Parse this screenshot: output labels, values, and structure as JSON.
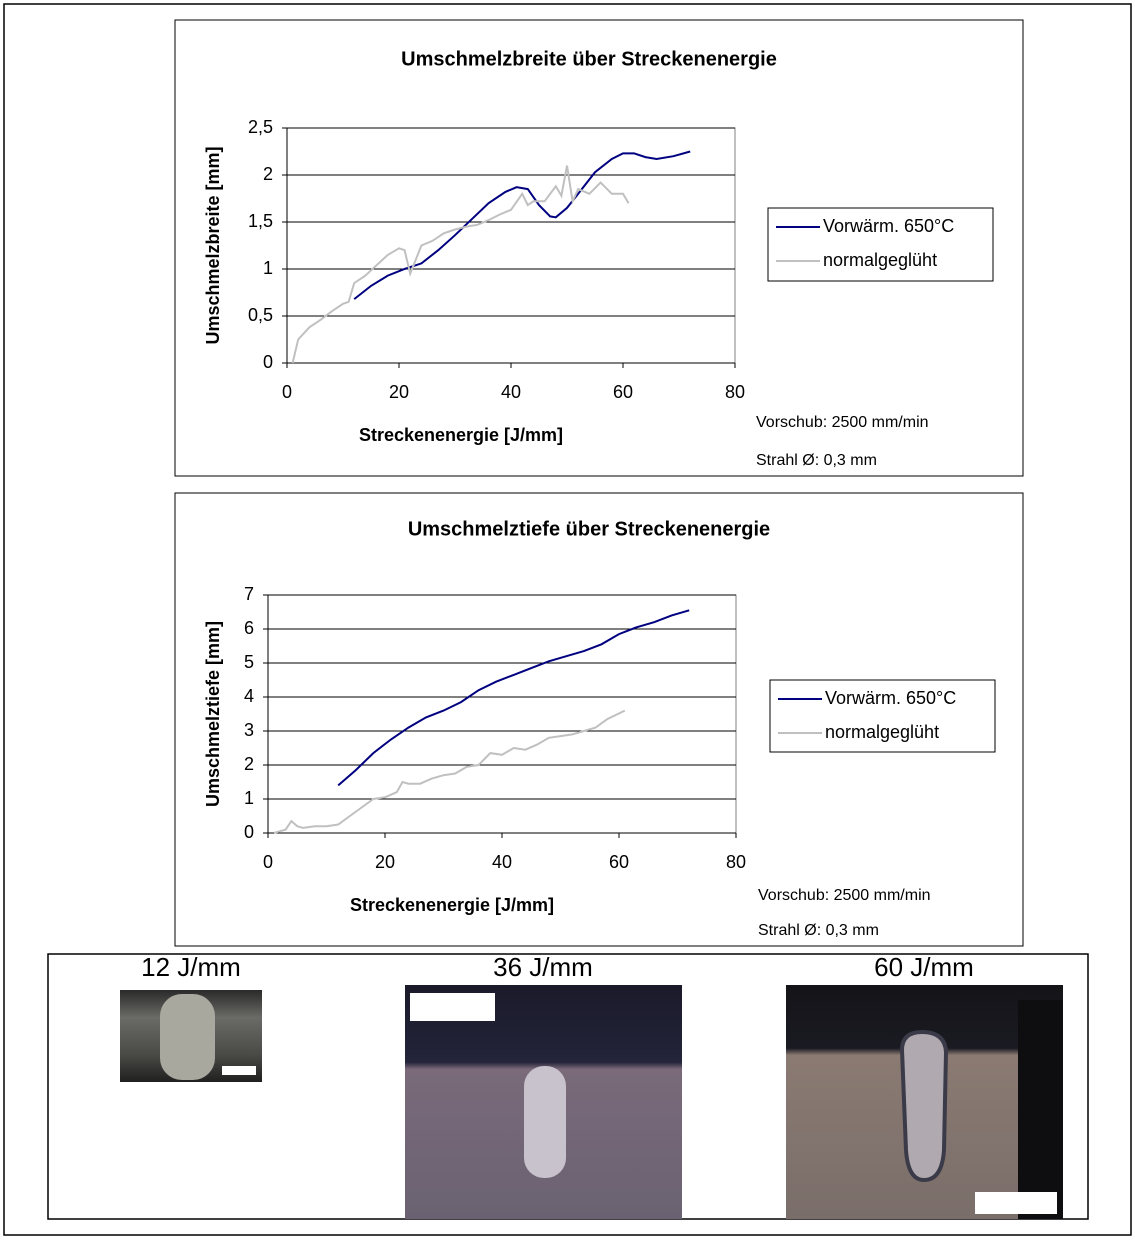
{
  "chart_data": [
    {
      "type": "line",
      "title": "Umschmelzbreite über Streckenenergie",
      "x_label": "Streckenenergie [J/mm]",
      "y_label": "Umschmelzbreite [mm]",
      "xlim": [
        0,
        80
      ],
      "xticks": [
        0,
        20,
        40,
        60,
        80
      ],
      "ylim": [
        0,
        2.5
      ],
      "yticks": [
        0,
        {
          "value": 0.5,
          "label": "0,5"
        },
        1,
        {
          "value": 1.5,
          "label": "1,5"
        },
        2,
        {
          "value": 2.5,
          "label": "2,5"
        }
      ],
      "grid": true,
      "legend": "right",
      "annotations": [
        "Vorschub: 2500 mm/min",
        "Strahl Ø: 0,3 mm"
      ],
      "series": [
        {
          "name": "Vorwärm. 650°C",
          "color": "#000080",
          "x": [
            12,
            15,
            18,
            21,
            24,
            27,
            30,
            33,
            36,
            39,
            41,
            43,
            45,
            47,
            48,
            50,
            52,
            55,
            58,
            60,
            62,
            64,
            66,
            69,
            72
          ],
          "values": [
            0.68,
            0.82,
            0.93,
            1.0,
            1.06,
            1.2,
            1.36,
            1.53,
            1.7,
            1.82,
            1.87,
            1.85,
            1.68,
            1.56,
            1.55,
            1.65,
            1.8,
            2.03,
            2.17,
            2.23,
            2.23,
            2.19,
            2.17,
            2.2,
            2.25
          ]
        },
        {
          "name": "normalgeglüht",
          "color": "#c0c0c0",
          "x": [
            1,
            2,
            4,
            6,
            8,
            10,
            11,
            12,
            14,
            16,
            18,
            20,
            21,
            22,
            23,
            24,
            26,
            28,
            30,
            32,
            34,
            36,
            38,
            40,
            42,
            43,
            44,
            46,
            48,
            49,
            50,
            51,
            52,
            54,
            56,
            58,
            60,
            61
          ],
          "values": [
            0,
            0.25,
            0.38,
            0.46,
            0.55,
            0.63,
            0.65,
            0.85,
            0.93,
            1.04,
            1.15,
            1.22,
            1.2,
            0.95,
            1.1,
            1.25,
            1.3,
            1.38,
            1.42,
            1.45,
            1.47,
            1.52,
            1.58,
            1.63,
            1.8,
            1.68,
            1.72,
            1.72,
            1.88,
            1.78,
            2.1,
            1.72,
            1.85,
            1.8,
            1.92,
            1.8,
            1.8,
            1.7
          ]
        }
      ]
    },
    {
      "type": "line",
      "title": "Umschmelztiefe über Streckenenergie",
      "x_label": "Streckenenergie [J/mm]",
      "y_label": "Umschmelztiefe [mm]",
      "xlim": [
        0,
        80
      ],
      "xticks": [
        0,
        20,
        40,
        60,
        80
      ],
      "ylim": [
        0,
        7
      ],
      "yticks": [
        0,
        1,
        2,
        3,
        4,
        5,
        6,
        7
      ],
      "grid": true,
      "legend": "right",
      "annotations": [
        "Vorschub: 2500 mm/min",
        "Strahl Ø: 0,3 mm"
      ],
      "series": [
        {
          "name": "Vorwärm. 650°C",
          "color": "#000080",
          "x": [
            12,
            15,
            18,
            21,
            24,
            27,
            30,
            33,
            36,
            39,
            42,
            45,
            48,
            51,
            54,
            57,
            60,
            63,
            66,
            69,
            72
          ],
          "values": [
            1.4,
            1.85,
            2.35,
            2.75,
            3.1,
            3.4,
            3.6,
            3.85,
            4.2,
            4.45,
            4.65,
            4.85,
            5.05,
            5.2,
            5.35,
            5.55,
            5.85,
            6.05,
            6.2,
            6.4,
            6.55
          ]
        },
        {
          "name": "normalgeglüht",
          "color": "#c0c0c0",
          "x": [
            1,
            2,
            3,
            4,
            5,
            6,
            8,
            10,
            12,
            14,
            16,
            18,
            20,
            22,
            23,
            24,
            26,
            28,
            30,
            32,
            34,
            36,
            38,
            40,
            42,
            44,
            46,
            48,
            50,
            52,
            54,
            56,
            58,
            61
          ],
          "values": [
            0,
            0.05,
            0.1,
            0.35,
            0.2,
            0.15,
            0.2,
            0.2,
            0.25,
            0.5,
            0.75,
            1.0,
            1.05,
            1.2,
            1.5,
            1.45,
            1.45,
            1.6,
            1.7,
            1.75,
            1.95,
            2.0,
            2.35,
            2.3,
            2.5,
            2.45,
            2.6,
            2.8,
            2.85,
            2.9,
            3.0,
            3.1,
            3.35,
            3.6
          ]
        }
      ]
    }
  ],
  "micrographs": [
    {
      "label": "12 J/mm"
    },
    {
      "label": "36 J/mm"
    },
    {
      "label": "60 J/mm"
    }
  ]
}
